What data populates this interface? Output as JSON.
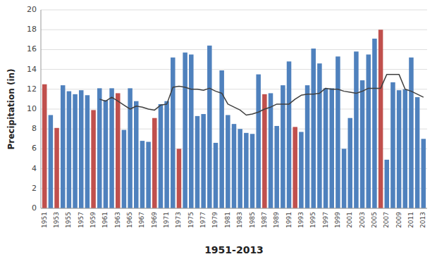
{
  "chart_data": {
    "type": "bar",
    "xlabel": "1951-2013",
    "ylabel": "Precipitation (in)",
    "categories": [
      "1951",
      null,
      "1953",
      null,
      "1955",
      null,
      "1957",
      null,
      "1959",
      null,
      "1961",
      null,
      "1963",
      null,
      "1965",
      null,
      "1967",
      null,
      "1969",
      null,
      "1971",
      null,
      "1973",
      null,
      "1975",
      null,
      "1977",
      null,
      "1979",
      null,
      "1981",
      null,
      "1983",
      null,
      "1985",
      null,
      "1987",
      null,
      "1989",
      null,
      "1991",
      null,
      "1993",
      null,
      "1995",
      null,
      "1997",
      null,
      "1999",
      null,
      "2001",
      null,
      "2003",
      null,
      "2005",
      null,
      "2007",
      null,
      "2009",
      null,
      "2011",
      null,
      "2013"
    ],
    "series": [
      {
        "type": "bar",
        "values": [
          12.5,
          9.4,
          8.1,
          12.4,
          11.8,
          11.5,
          11.9,
          11.4,
          9.9,
          12.1,
          10.9,
          12.1,
          11.6,
          7.9,
          12.1,
          10.8,
          6.8,
          6.7,
          9.1,
          10.5,
          10.8,
          15.2,
          6.0,
          15.7,
          15.5,
          9.3,
          9.5,
          16.4,
          6.6,
          13.9,
          9.4,
          8.5,
          8.0,
          7.6,
          7.5,
          13.5,
          11.5,
          11.6,
          8.3,
          12.4,
          14.8,
          8.2,
          7.7,
          12.4,
          16.1,
          14.6,
          12.1,
          12.1,
          15.3,
          6.0,
          9.1,
          15.8,
          12.9,
          15.5,
          17.1,
          18.0,
          4.9,
          12.7,
          11.9,
          12.0,
          15.2,
          11.2,
          7.0
        ],
        "colors": [
          "#c0504d",
          "#4f81bd",
          "#c0504d",
          "#4f81bd",
          "#4f81bd",
          "#4f81bd",
          "#4f81bd",
          "#4f81bd",
          "#c0504d",
          "#4f81bd",
          "#4f81bd",
          "#4f81bd",
          "#c0504d",
          "#4f81bd",
          "#4f81bd",
          "#4f81bd",
          "#4f81bd",
          "#4f81bd",
          "#c0504d",
          "#4f81bd",
          "#4f81bd",
          "#4f81bd",
          "#c0504d",
          "#4f81bd",
          "#4f81bd",
          "#4f81bd",
          "#4f81bd",
          "#4f81bd",
          "#4f81bd",
          "#4f81bd",
          "#4f81bd",
          "#4f81bd",
          "#4f81bd",
          "#4f81bd",
          "#4f81bd",
          "#4f81bd",
          "#c0504d",
          "#4f81bd",
          "#4f81bd",
          "#4f81bd",
          "#4f81bd",
          "#c0504d",
          "#4f81bd",
          "#4f81bd",
          "#4f81bd",
          "#4f81bd",
          "#4f81bd",
          "#4f81bd",
          "#4f81bd",
          "#4f81bd",
          "#4f81bd",
          "#4f81bd",
          "#4f81bd",
          "#4f81bd",
          "#4f81bd",
          "#c0504d",
          "#4f81bd",
          "#4f81bd",
          "#4f81bd",
          "#4f81bd",
          "#4f81bd",
          "#4f81bd",
          "#4f81bd"
        ]
      },
      {
        "type": "line",
        "color": "#404040",
        "values": [
          null,
          null,
          null,
          null,
          null,
          null,
          null,
          null,
          null,
          11.0,
          10.8,
          11.2,
          10.8,
          10.4,
          10.0,
          10.3,
          10.2,
          10.0,
          9.9,
          10.4,
          10.5,
          12.2,
          12.3,
          12.2,
          12.0,
          12.0,
          11.9,
          12.1,
          11.8,
          11.6,
          10.5,
          10.2,
          9.9,
          9.4,
          9.5,
          9.7,
          10.0,
          10.2,
          10.5,
          10.5,
          10.5,
          11.0,
          11.4,
          11.5,
          11.5,
          11.6,
          12.1,
          12.0,
          12.0,
          11.8,
          11.7,
          11.6,
          11.8,
          12.1,
          12.1,
          12.1,
          13.5,
          13.5,
          13.5,
          12.0,
          11.8,
          11.5,
          11.2
        ]
      }
    ],
    "ylim": [
      0,
      20
    ],
    "yticks": [
      0,
      2,
      4,
      6,
      8,
      10,
      12,
      14,
      16,
      18,
      20
    ],
    "grid": true
  }
}
